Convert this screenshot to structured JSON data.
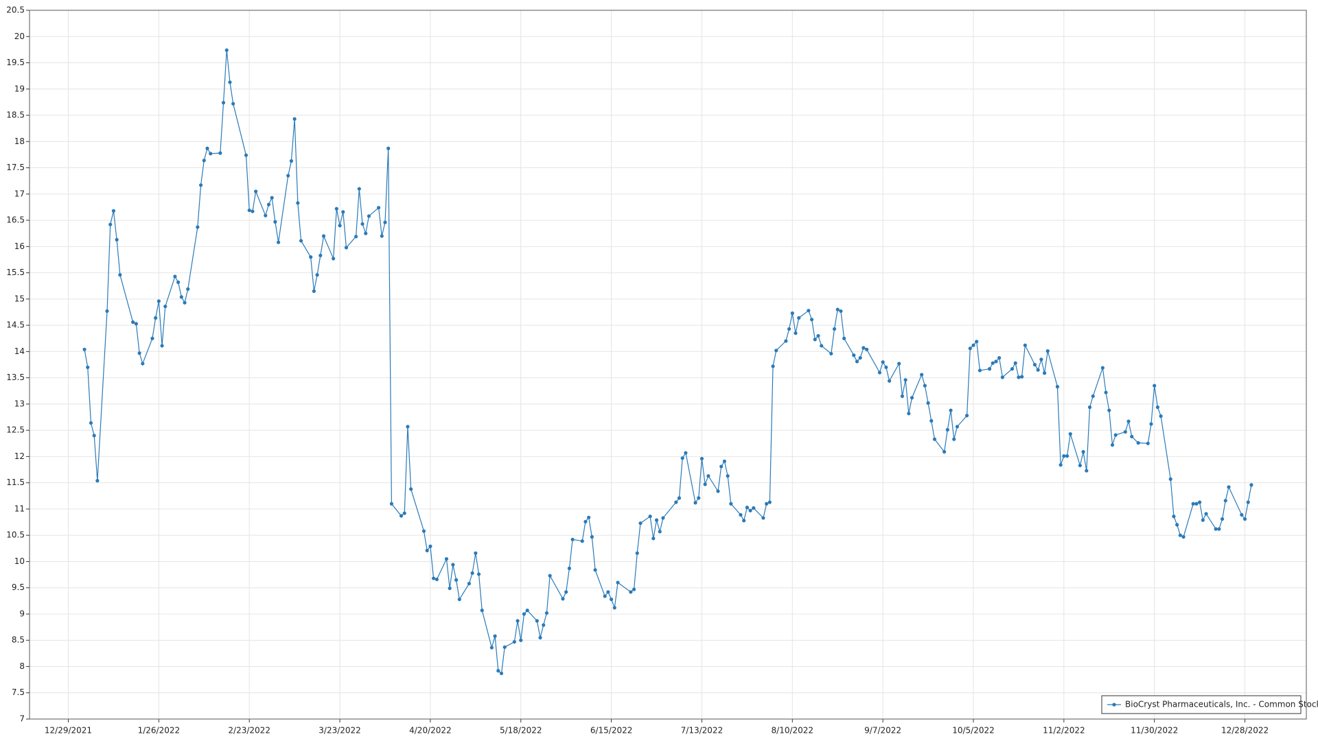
{
  "chart_data": {
    "type": "line",
    "x": [
      "1/3/2022",
      "1/4/2022",
      "1/5/2022",
      "1/6/2022",
      "1/7/2022",
      "1/10/2022",
      "1/11/2022",
      "1/12/2022",
      "1/13/2022",
      "1/14/2022",
      "1/18/2022",
      "1/19/2022",
      "1/20/2022",
      "1/21/2022",
      "1/24/2022",
      "1/25/2022",
      "1/26/2022",
      "1/27/2022",
      "1/28/2022",
      "1/31/2022",
      "2/1/2022",
      "2/2/2022",
      "2/3/2022",
      "2/4/2022",
      "2/7/2022",
      "2/8/2022",
      "2/9/2022",
      "2/10/2022",
      "2/11/2022",
      "2/14/2022",
      "2/15/2022",
      "2/16/2022",
      "2/17/2022",
      "2/18/2022",
      "2/22/2022",
      "2/23/2022",
      "2/24/2022",
      "2/25/2022",
      "2/28/2022",
      "3/1/2022",
      "3/2/2022",
      "3/3/2022",
      "3/4/2022",
      "3/7/2022",
      "3/8/2022",
      "3/9/2022",
      "3/10/2022",
      "3/11/2022",
      "3/14/2022",
      "3/15/2022",
      "3/16/2022",
      "3/17/2022",
      "3/18/2022",
      "3/21/2022",
      "3/22/2022",
      "3/23/2022",
      "3/24/2022",
      "3/25/2022",
      "3/28/2022",
      "3/29/2022",
      "3/30/2022",
      "3/31/2022",
      "4/1/2022",
      "4/4/2022",
      "4/5/2022",
      "4/6/2022",
      "4/7/2022",
      "4/8/2022",
      "4/11/2022",
      "4/12/2022",
      "4/13/2022",
      "4/14/2022",
      "4/18/2022",
      "4/19/2022",
      "4/20/2022",
      "4/21/2022",
      "4/22/2022",
      "4/25/2022",
      "4/26/2022",
      "4/27/2022",
      "4/28/2022",
      "4/29/2022",
      "5/2/2022",
      "5/3/2022",
      "5/4/2022",
      "5/5/2022",
      "5/6/2022",
      "5/9/2022",
      "5/10/2022",
      "5/11/2022",
      "5/12/2022",
      "5/13/2022",
      "5/16/2022",
      "5/17/2022",
      "5/18/2022",
      "5/19/2022",
      "5/20/2022",
      "5/23/2022",
      "5/24/2022",
      "5/25/2022",
      "5/26/2022",
      "5/27/2022",
      "5/31/2022",
      "6/1/2022",
      "6/2/2022",
      "6/3/2022",
      "6/6/2022",
      "6/7/2022",
      "6/8/2022",
      "6/9/2022",
      "6/10/2022",
      "6/13/2022",
      "6/14/2022",
      "6/15/2022",
      "6/16/2022",
      "6/17/2022",
      "6/21/2022",
      "6/22/2022",
      "6/23/2022",
      "6/24/2022",
      "6/27/2022",
      "6/28/2022",
      "6/29/2022",
      "6/30/2022",
      "7/1/2022",
      "7/5/2022",
      "7/6/2022",
      "7/7/2022",
      "7/8/2022",
      "7/11/2022",
      "7/12/2022",
      "7/13/2022",
      "7/14/2022",
      "7/15/2022",
      "7/18/2022",
      "7/19/2022",
      "7/20/2022",
      "7/21/2022",
      "7/22/2022",
      "7/25/2022",
      "7/26/2022",
      "7/27/2022",
      "7/28/2022",
      "7/29/2022",
      "8/1/2022",
      "8/2/2022",
      "8/3/2022",
      "8/4/2022",
      "8/5/2022",
      "8/8/2022",
      "8/9/2022",
      "8/10/2022",
      "8/11/2022",
      "8/12/2022",
      "8/15/2022",
      "8/16/2022",
      "8/17/2022",
      "8/18/2022",
      "8/19/2022",
      "8/22/2022",
      "8/23/2022",
      "8/24/2022",
      "8/25/2022",
      "8/26/2022",
      "8/29/2022",
      "8/30/2022",
      "8/31/2022",
      "9/1/2022",
      "9/2/2022",
      "9/6/2022",
      "9/7/2022",
      "9/8/2022",
      "9/9/2022",
      "9/12/2022",
      "9/13/2022",
      "9/14/2022",
      "9/15/2022",
      "9/16/2022",
      "9/19/2022",
      "9/20/2022",
      "9/21/2022",
      "9/22/2022",
      "9/23/2022",
      "9/26/2022",
      "9/27/2022",
      "9/28/2022",
      "9/29/2022",
      "9/30/2022",
      "10/3/2022",
      "10/4/2022",
      "10/5/2022",
      "10/6/2022",
      "10/7/2022",
      "10/10/2022",
      "10/11/2022",
      "10/12/2022",
      "10/13/2022",
      "10/14/2022",
      "10/17/2022",
      "10/18/2022",
      "10/19/2022",
      "10/20/2022",
      "10/21/2022",
      "10/24/2022",
      "10/25/2022",
      "10/26/2022",
      "10/27/2022",
      "10/28/2022",
      "10/31/2022",
      "11/1/2022",
      "11/2/2022",
      "11/3/2022",
      "11/4/2022",
      "11/7/2022",
      "11/8/2022",
      "11/9/2022",
      "11/10/2022",
      "11/11/2022",
      "11/14/2022",
      "11/15/2022",
      "11/16/2022",
      "11/17/2022",
      "11/18/2022",
      "11/21/2022",
      "11/22/2022",
      "11/23/2022",
      "11/25/2022",
      "11/28/2022",
      "11/29/2022",
      "11/30/2022",
      "12/1/2022",
      "12/2/2022",
      "12/5/2022",
      "12/6/2022",
      "12/7/2022",
      "12/8/2022",
      "12/9/2022",
      "12/12/2022",
      "12/13/2022",
      "12/14/2022",
      "12/15/2022",
      "12/16/2022",
      "12/19/2022",
      "12/20/2022",
      "12/21/2022",
      "12/22/2022",
      "12/23/2022",
      "12/27/2022",
      "12/28/2022",
      "12/29/2022",
      "12/30/2022"
    ],
    "series": [
      {
        "name": "BioCryst Pharmaceuticals, Inc. - Common Stock",
        "color": "#2a7ab8",
        "values": [
          14.04,
          13.7,
          12.64,
          12.4,
          11.54,
          14.77,
          16.42,
          16.68,
          16.13,
          15.46,
          14.56,
          14.53,
          13.97,
          13.77,
          14.25,
          14.64,
          14.96,
          14.11,
          14.86,
          15.43,
          15.32,
          15.04,
          14.93,
          15.19,
          16.37,
          17.17,
          17.64,
          17.87,
          17.77,
          17.78,
          18.74,
          19.74,
          19.13,
          18.72,
          17.74,
          16.69,
          16.67,
          17.05,
          16.59,
          16.8,
          16.93,
          16.47,
          16.08,
          17.35,
          17.63,
          18.43,
          16.83,
          16.11,
          15.8,
          15.15,
          15.46,
          15.83,
          16.2,
          15.77,
          16.72,
          16.4,
          16.66,
          15.98,
          16.19,
          17.1,
          16.43,
          16.25,
          16.58,
          16.74,
          16.2,
          16.46,
          17.87,
          11.1,
          10.87,
          10.92,
          12.57,
          11.38,
          10.58,
          10.21,
          10.29,
          9.68,
          9.66,
          10.05,
          9.49,
          9.94,
          9.65,
          9.28,
          9.58,
          9.78,
          10.16,
          9.76,
          9.07,
          8.36,
          8.58,
          7.92,
          7.87,
          8.37,
          8.47,
          8.87,
          8.5,
          9.0,
          9.07,
          8.87,
          8.55,
          8.79,
          9.02,
          9.73,
          9.29,
          9.42,
          9.87,
          10.42,
          10.39,
          10.76,
          10.84,
          10.47,
          9.84,
          9.34,
          9.42,
          9.28,
          9.12,
          9.6,
          9.42,
          9.47,
          10.16,
          10.73,
          10.86,
          10.44,
          10.79,
          10.57,
          10.83,
          11.13,
          11.21,
          11.97,
          12.07,
          11.12,
          11.21,
          11.96,
          11.47,
          11.63,
          11.34,
          11.81,
          11.91,
          11.63,
          11.1,
          10.89,
          10.78,
          11.03,
          10.97,
          11.02,
          10.83,
          11.1,
          11.13,
          13.72,
          14.02,
          14.2,
          14.43,
          14.73,
          14.35,
          14.64,
          14.78,
          14.61,
          14.23,
          14.3,
          14.11,
          13.96,
          14.43,
          14.8,
          14.77,
          14.25,
          13.93,
          13.81,
          13.88,
          14.07,
          14.04,
          13.6,
          13.8,
          13.7,
          13.44,
          13.77,
          13.15,
          13.46,
          12.82,
          13.12,
          13.56,
          13.35,
          13.02,
          12.68,
          12.33,
          12.09,
          12.51,
          12.88,
          12.33,
          12.57,
          12.78,
          14.06,
          14.12,
          14.19,
          13.64,
          13.67,
          13.78,
          13.81,
          13.88,
          13.51,
          13.67,
          13.78,
          13.51,
          13.52,
          14.12,
          13.75,
          13.65,
          13.85,
          13.59,
          14.01,
          13.33,
          11.84,
          12.01,
          12.01,
          12.43,
          11.83,
          12.09,
          11.73,
          12.94,
          13.15,
          13.69,
          13.22,
          12.88,
          12.22,
          12.41,
          12.47,
          12.67,
          12.38,
          12.26,
          12.25,
          12.62,
          13.35,
          12.94,
          12.77,
          11.57,
          10.86,
          10.7,
          10.5,
          10.47,
          11.1,
          11.1,
          11.13,
          10.79,
          10.91,
          10.62,
          10.62,
          10.81,
          11.16,
          11.42,
          10.89,
          10.81,
          11.13,
          11.46
        ]
      }
    ],
    "xlim": [
      "12/17/2021",
      "1/16/2023"
    ],
    "xticks": [
      "12/29/2021",
      "1/26/2022",
      "2/23/2022",
      "3/23/2022",
      "4/20/2022",
      "5/18/2022",
      "6/15/2022",
      "7/13/2022",
      "8/10/2022",
      "9/7/2022",
      "10/5/2022",
      "11/2/2022",
      "11/30/2022",
      "12/28/2022"
    ],
    "ylim": [
      7,
      20.5
    ],
    "yticks": [
      7,
      7.5,
      8,
      8.5,
      9,
      9.5,
      10,
      10.5,
      11,
      11.5,
      12,
      12.5,
      13,
      13.5,
      14,
      14.5,
      15,
      15.5,
      16,
      16.5,
      17,
      17.5,
      18,
      18.5,
      19,
      19.5,
      20,
      20.5
    ],
    "grid": true,
    "legend": "lower right",
    "markers": true
  }
}
